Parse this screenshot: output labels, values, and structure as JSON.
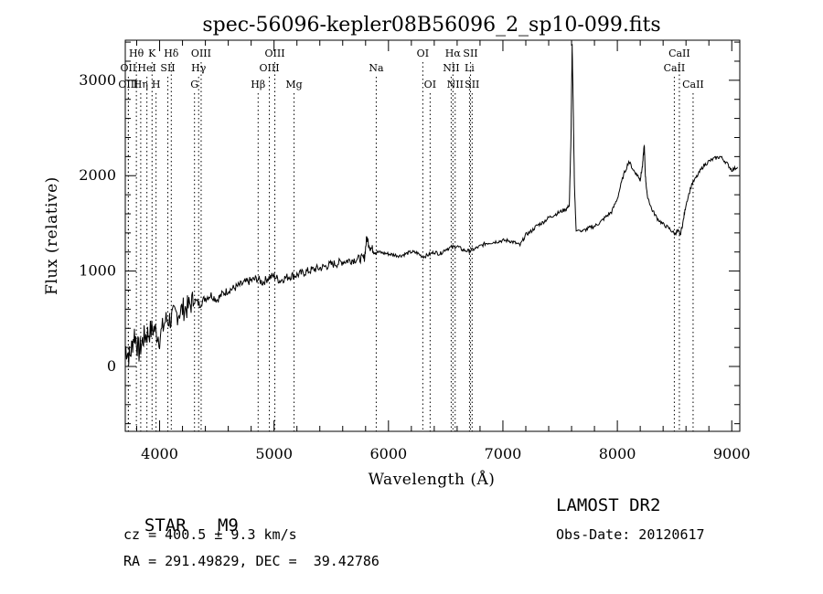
{
  "chart_data": {
    "type": "line",
    "title": "spec-56096-kepler08B56096_2_sp10-099.fits",
    "xlabel": "Wavelength (Å)",
    "ylabel": "Flux (relative)",
    "xlim": [
      3700,
      9070
    ],
    "ylim": [
      -680,
      3420
    ],
    "xticks": [
      4000,
      5000,
      6000,
      7000,
      8000,
      9000
    ],
    "yticks": [
      0,
      1000,
      2000,
      3000
    ],
    "grid": false,
    "series": [
      {
        "x": [
          3700,
          3740,
          3780,
          3820,
          3860,
          3900,
          3950,
          4000,
          4050,
          4100,
          4150,
          4200,
          4250,
          4300,
          4350,
          4400,
          4450,
          4500,
          4550,
          4600,
          4650,
          4700,
          4750,
          4800,
          4850,
          4900,
          4950,
          5000,
          5050,
          5100,
          5150,
          5200,
          5250,
          5300,
          5350,
          5400,
          5450,
          5500,
          5550,
          5600,
          5650,
          5700,
          5750,
          5790,
          5810,
          5840,
          5870,
          5900,
          5950,
          6000,
          6050,
          6100,
          6150,
          6200,
          6250,
          6300,
          6350,
          6400,
          6450,
          6500,
          6550,
          6600,
          6650,
          6700,
          6750,
          6800,
          6850,
          6900,
          6950,
          7000,
          7050,
          7100,
          7150,
          7200,
          7250,
          7300,
          7350,
          7400,
          7450,
          7500,
          7550,
          7580,
          7595,
          7605,
          7615,
          7625,
          7640,
          7660,
          7700,
          7750,
          7800,
          7850,
          7900,
          7950,
          8000,
          8050,
          8100,
          8150,
          8180,
          8200,
          8220,
          8235,
          8245,
          8260,
          8300,
          8350,
          8400,
          8450,
          8500,
          8530,
          8550,
          8575,
          8600,
          8650,
          8700,
          8750,
          8800,
          8850,
          8900,
          8950,
          9000,
          9050
        ],
        "values": [
          200,
          100,
          350,
          150,
          300,
          350,
          400,
          300,
          480,
          500,
          550,
          600,
          620,
          700,
          650,
          720,
          750,
          700,
          760,
          800,
          820,
          850,
          880,
          900,
          920,
          880,
          930,
          950,
          900,
          930,
          950,
          960,
          980,
          1000,
          1020,
          1030,
          1050,
          1070,
          1080,
          1100,
          1110,
          1120,
          1130,
          1140,
          1350,
          1250,
          1220,
          1200,
          1190,
          1180,
          1170,
          1160,
          1180,
          1200,
          1190,
          1150,
          1170,
          1200,
          1180,
          1230,
          1250,
          1260,
          1220,
          1210,
          1230,
          1260,
          1290,
          1300,
          1310,
          1320,
          1320,
          1300,
          1270,
          1380,
          1420,
          1480,
          1510,
          1560,
          1590,
          1620,
          1650,
          1680,
          2400,
          3380,
          2700,
          1900,
          1420,
          1430,
          1420,
          1450,
          1470,
          1510,
          1570,
          1620,
          1760,
          1990,
          2150,
          2040,
          2000,
          1960,
          2100,
          2330,
          2000,
          1800,
          1650,
          1550,
          1490,
          1450,
          1390,
          1420,
          1380,
          1520,
          1700,
          1910,
          2000,
          2100,
          2150,
          2180,
          2200,
          2140,
          2060,
          2090
        ]
      }
    ],
    "lines_row1": [
      {
        "label": "Hθ",
        "w": 3797
      },
      {
        "label": "K",
        "w": 3934
      },
      {
        "label": "Hδ",
        "w": 4102
      },
      {
        "label": "OIII",
        "w": 4363
      },
      {
        "label": "OIII",
        "w": 5007
      },
      {
        "label": "OI",
        "w": 6300
      },
      {
        "label": "Hα",
        "w": 6563
      },
      {
        "label": "SII",
        "w": 6717
      },
      {
        "label": "CaII",
        "w": 8542
      }
    ],
    "lines_row2": [
      {
        "label": "OII",
        "w": 3727
      },
      {
        "label": "HeI",
        "w": 3889
      },
      {
        "label": "SII",
        "w": 4072
      },
      {
        "label": "Hγ",
        "w": 4341
      },
      {
        "label": "OIII",
        "w": 4959
      },
      {
        "label": "Na",
        "w": 5893
      },
      {
        "label": "NII",
        "w": 6548
      },
      {
        "label": "Li",
        "w": 6708
      },
      {
        "label": "CaII",
        "w": 8498
      }
    ],
    "lines_row3": [
      {
        "label": "OIII",
        "w": 3727
      },
      {
        "label": "Hη",
        "w": 3835
      },
      {
        "label": "H",
        "w": 3969
      },
      {
        "label": "G",
        "w": 4305
      },
      {
        "label": "Hβ",
        "w": 4861
      },
      {
        "label": "Mg",
        "w": 5175
      },
      {
        "label": "OI",
        "w": 6364
      },
      {
        "label": "NII",
        "w": 6583
      },
      {
        "label": "SII",
        "w": 6731
      },
      {
        "label": "CaII",
        "w": 8662
      }
    ]
  },
  "info": {
    "class_label": "STAR",
    "subclass": "M9",
    "survey": "LAMOST DR2",
    "cz": "cz = 400.5 ± 9.3 km/s",
    "obs_date": "Obs-Date: 20120617",
    "coords": "RA = 291.49829, DEC =  39.42786"
  }
}
